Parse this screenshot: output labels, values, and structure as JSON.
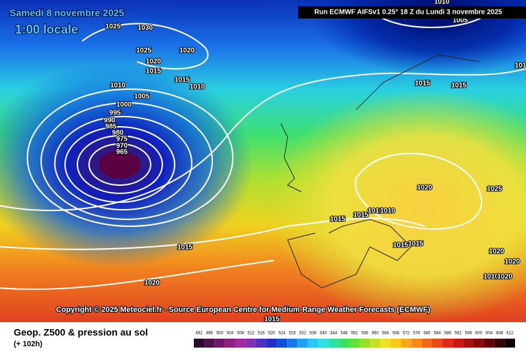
{
  "header": {
    "date": "Samedi 8 novembre 2025",
    "time": "1:00 locale",
    "run": "Run ECMWF AIFSv1 0.25° 18 Z du Lundi 3 novembre 2025"
  },
  "isobar_labels": [
    "1025",
    "1030",
    "1010",
    "1005",
    "1025",
    "1020",
    "1020",
    "1015",
    "1015",
    "1010",
    "1010",
    "1005",
    "1000",
    "995",
    "990",
    "985",
    "980",
    "975",
    "970",
    "965",
    "1015",
    "1015",
    "101",
    "1020",
    "1025",
    "1015",
    "1015",
    "1010",
    "1010",
    "1015",
    "1015",
    "1020",
    "1020",
    "1010",
    "1020",
    "1015",
    "1020",
    "1015"
  ],
  "copyright": "Copyright © 2025 Meteociel.fr - Source European Centre for Medium-Range Weather Forecasts (ECMWF)",
  "footer": {
    "title": "Geop. Z500 & pression au sol",
    "lead": "(+ 102h)"
  },
  "colorbar": {
    "labels": [
      "492",
      "496",
      "500",
      "504",
      "508",
      "512",
      "516",
      "520",
      "524",
      "528",
      "532",
      "536",
      "540",
      "544",
      "548",
      "552",
      "556",
      "560",
      "564",
      "568",
      "572",
      "576",
      "580",
      "584",
      "588",
      "592",
      "596",
      "600",
      "604",
      "608",
      "612"
    ]
  }
}
